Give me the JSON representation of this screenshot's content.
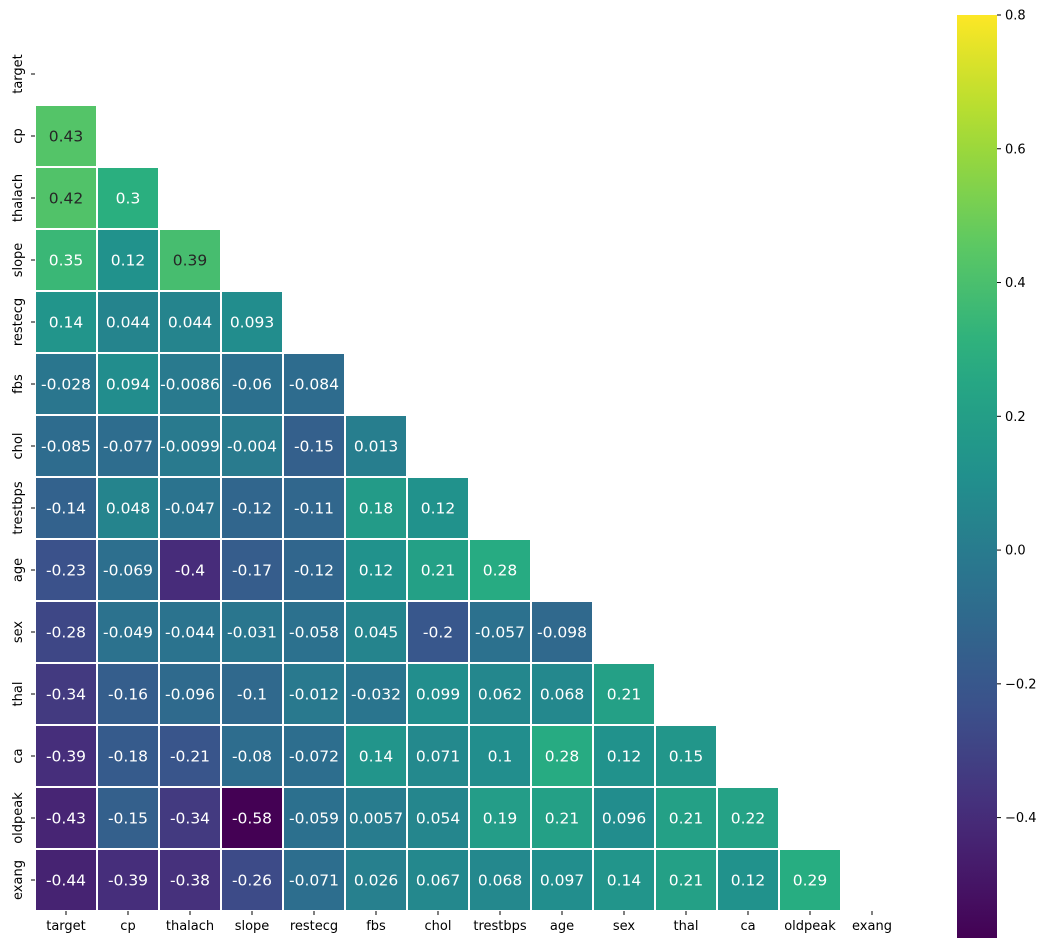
{
  "chart_data": {
    "type": "heatmap",
    "title": "",
    "xlabel": "",
    "ylabel": "",
    "variables": [
      "target",
      "cp",
      "thalach",
      "slope",
      "restecg",
      "fbs",
      "chol",
      "trestbps",
      "age",
      "sex",
      "thal",
      "ca",
      "oldpeak",
      "exang"
    ],
    "lower_triangle": [
      [],
      [
        "0.43"
      ],
      [
        "0.42",
        "0.3"
      ],
      [
        "0.35",
        "0.12",
        "0.39"
      ],
      [
        "0.14",
        "0.044",
        "0.044",
        "0.093"
      ],
      [
        "-0.028",
        "0.094",
        "-0.0086",
        "-0.06",
        "-0.084"
      ],
      [
        "-0.085",
        "-0.077",
        "-0.0099",
        "-0.004",
        "-0.15",
        "0.013"
      ],
      [
        "-0.14",
        "0.048",
        "-0.047",
        "-0.12",
        "-0.11",
        "0.18",
        "0.12"
      ],
      [
        "-0.23",
        "-0.069",
        "-0.4",
        "-0.17",
        "-0.12",
        "0.12",
        "0.21",
        "0.28"
      ],
      [
        "-0.28",
        "-0.049",
        "-0.044",
        "-0.031",
        "-0.058",
        "0.045",
        "-0.2",
        "-0.057",
        "-0.098"
      ],
      [
        "-0.34",
        "-0.16",
        "-0.096",
        "-0.1",
        "-0.012",
        "-0.032",
        "0.099",
        "0.062",
        "0.068",
        "0.21"
      ],
      [
        "-0.39",
        "-0.18",
        "-0.21",
        "-0.08",
        "-0.072",
        "0.14",
        "0.071",
        "0.1",
        "0.28",
        "0.12",
        "0.15"
      ],
      [
        "-0.43",
        "-0.15",
        "-0.34",
        "-0.58",
        "-0.059",
        "0.0057",
        "0.054",
        "0.19",
        "0.21",
        "0.096",
        "0.21",
        "0.22"
      ],
      [
        "-0.44",
        "-0.39",
        "-0.38",
        "-0.26",
        "-0.071",
        "0.026",
        "0.067",
        "0.068",
        "0.097",
        "0.14",
        "0.21",
        "0.12",
        "0.29"
      ]
    ],
    "colormap": "viridis",
    "vmin": -0.58,
    "vmax": 0.8,
    "colorbar_ticks": [
      "0.8",
      "0.6",
      "0.4",
      "0.2",
      "0.0",
      "−0.2",
      "−0.4"
    ],
    "colorbar_tick_values": [
      0.8,
      0.6,
      0.4,
      0.2,
      0.0,
      -0.2,
      -0.4
    ],
    "cell_border_color": "#ffffff",
    "grid": false
  }
}
